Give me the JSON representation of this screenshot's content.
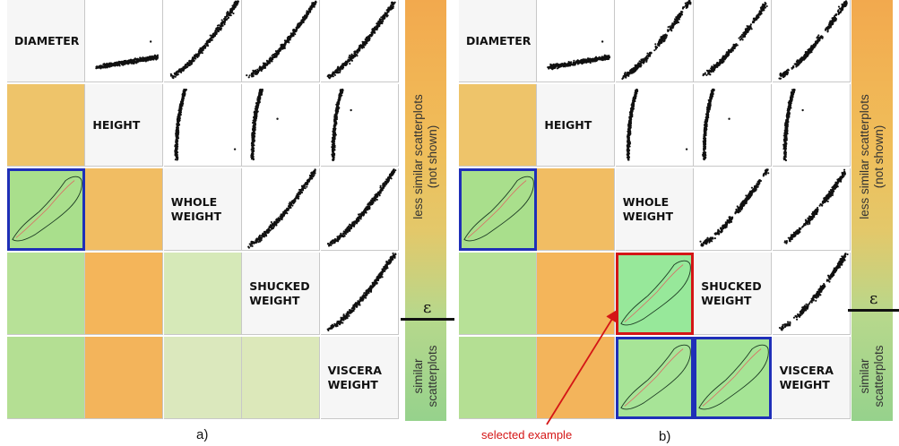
{
  "variables": [
    "DIAMETER",
    "HEIGHT",
    "WHOLE WEIGHT",
    "SHUCKED WEIGHT",
    "VISCERA WEIGHT"
  ],
  "labels": {
    "diameter": "DIAMETER",
    "height": "HEIGHT",
    "whole_1": "WHOLE",
    "whole_2": "WEIGHT",
    "shucked_1": "SHUCKED",
    "shucked_2": "WEIGHT",
    "viscera_1": "VISCERA",
    "viscera_2": "WEIGHT"
  },
  "legend": {
    "top_line1": "less similar scatterplots",
    "top_line2": "(not shown)",
    "bottom_line1": "similar",
    "bottom_line2": "scatterplots",
    "epsilon": "ε"
  },
  "panel_labels": {
    "a": "a)",
    "b": "b)"
  },
  "annotation": "selected example",
  "colors": {
    "orange": "#f2b45c",
    "orange_light": "#f0bd6a",
    "green": "#a8dc8a",
    "green_light": "#d8e6b8",
    "green_selected": "#97e89a",
    "selection_blue": "#1f2fb8",
    "selection_red": "#d41616"
  },
  "panel_a_lower_cells": [
    {
      "row": 1,
      "col": 0,
      "color": "#eec46a"
    },
    {
      "row": 2,
      "col": 0,
      "color": "#a9df8c",
      "selected": "blue"
    },
    {
      "row": 2,
      "col": 1,
      "color": "#f1bd63"
    },
    {
      "row": 3,
      "col": 0,
      "color": "#b7e197"
    },
    {
      "row": 3,
      "col": 1,
      "color": "#f4b55a"
    },
    {
      "row": 3,
      "col": 2,
      "color": "#d6e9b8"
    },
    {
      "row": 4,
      "col": 0,
      "color": "#b4df93"
    },
    {
      "row": 4,
      "col": 1,
      "color": "#f3b45b"
    },
    {
      "row": 4,
      "col": 2,
      "color": "#dbe8bd"
    },
    {
      "row": 4,
      "col": 3,
      "color": "#dce8ba"
    }
  ],
  "panel_b_lower_cells": [
    {
      "row": 1,
      "col": 0,
      "color": "#eec46a"
    },
    {
      "row": 2,
      "col": 0,
      "color": "#a9df8c",
      "selected": "blue"
    },
    {
      "row": 2,
      "col": 1,
      "color": "#f1bd63"
    },
    {
      "row": 3,
      "col": 0,
      "color": "#b7e197"
    },
    {
      "row": 3,
      "col": 1,
      "color": "#f4b55a"
    },
    {
      "row": 3,
      "col": 2,
      "color": "#97e89a",
      "selected": "red"
    },
    {
      "row": 4,
      "col": 0,
      "color": "#b4df93"
    },
    {
      "row": 4,
      "col": 1,
      "color": "#f3b45b"
    },
    {
      "row": 4,
      "col": 2,
      "color": "#a7e497",
      "selected": "blue"
    },
    {
      "row": 4,
      "col": 3,
      "color": "#a5e495",
      "selected": "blue"
    }
  ]
}
